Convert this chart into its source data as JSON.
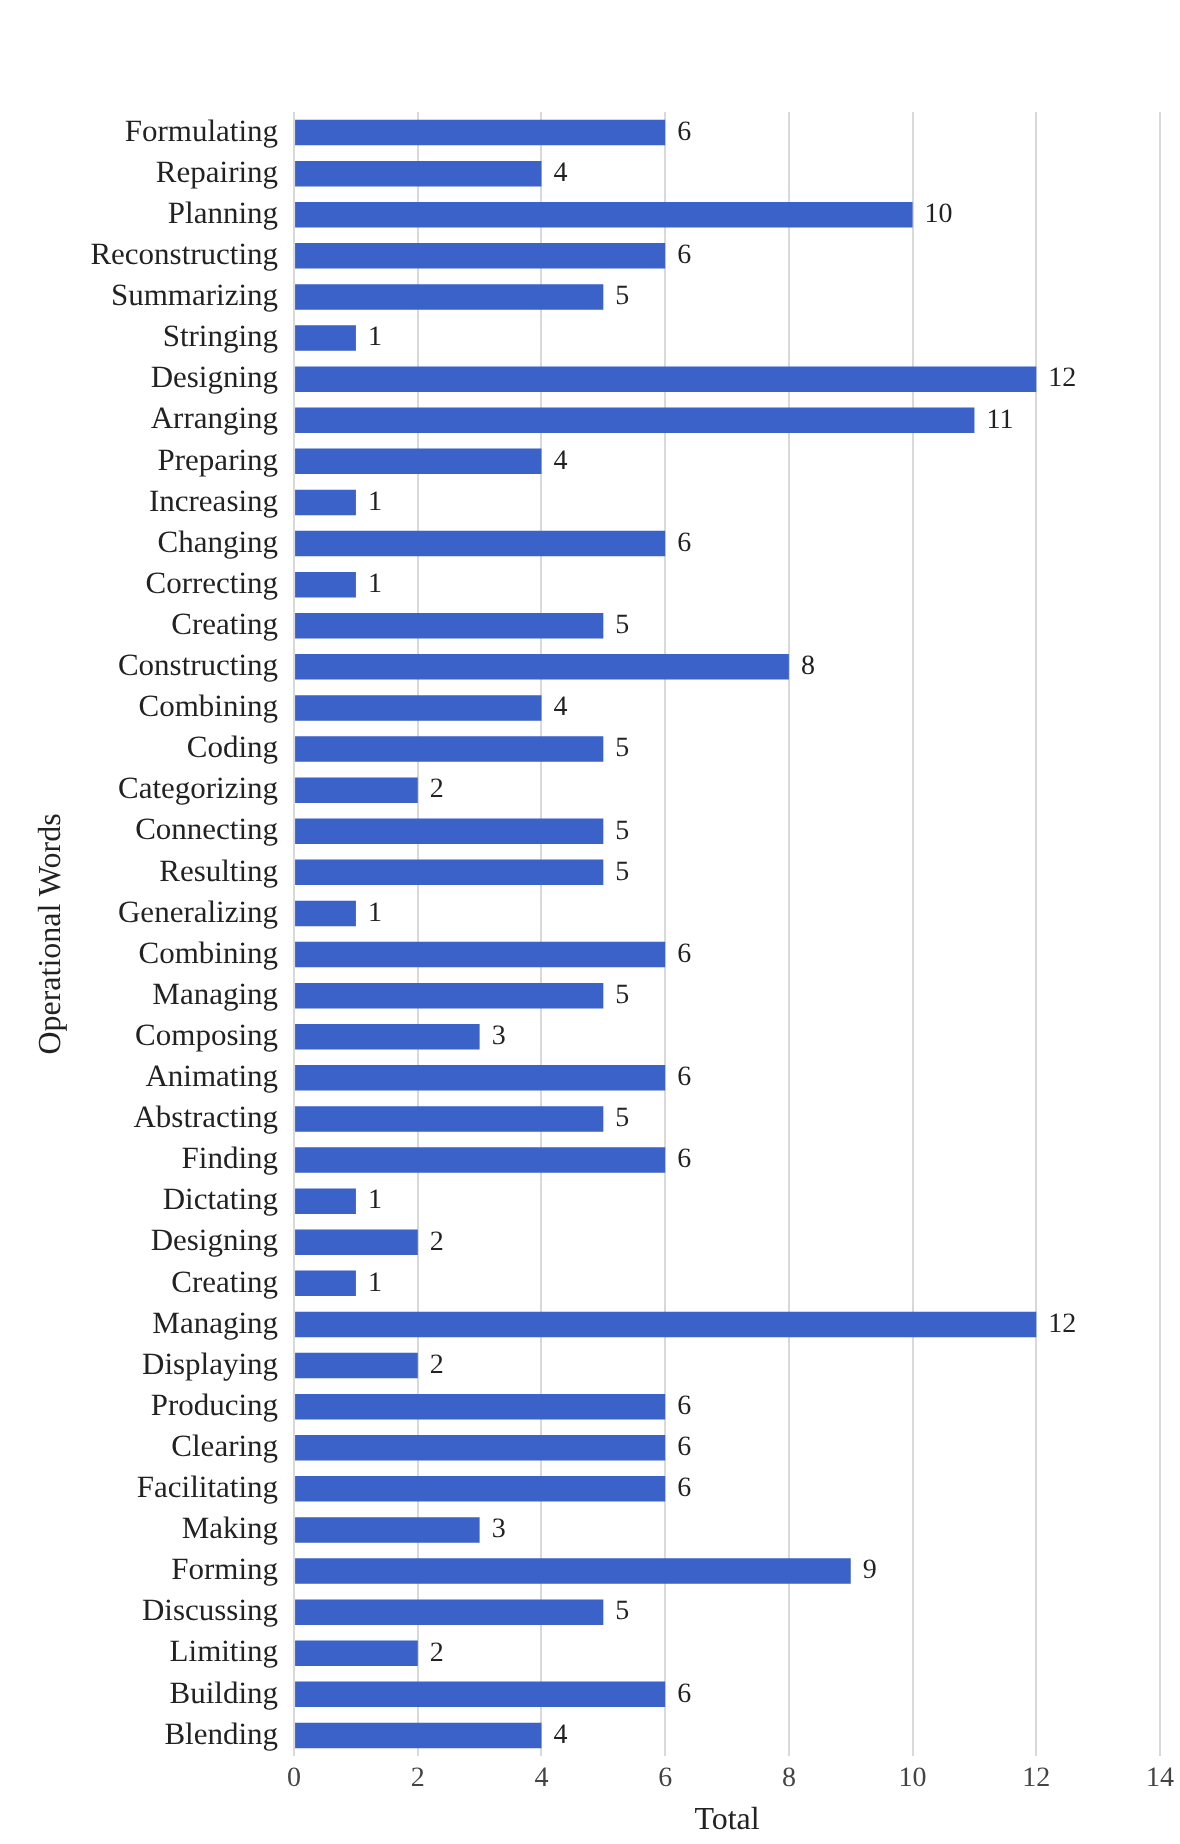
{
  "chart_data": {
    "type": "bar",
    "orientation": "horizontal",
    "xlabel": "Total",
    "ylabel": "Operational Words",
    "categories": [
      "Formulating",
      "Repairing",
      "Planning",
      "Reconstructing",
      "Summarizing",
      "Stringing",
      "Designing",
      "Arranging",
      "Preparing",
      "Increasing",
      "Changing",
      "Correcting",
      "Creating",
      "Constructing",
      "Combining",
      "Coding",
      "Categorizing",
      "Connecting",
      "Resulting",
      "Generalizing",
      "Combining",
      "Managing",
      "Composing",
      "Animating",
      "Abstracting",
      "Finding",
      "Dictating",
      "Designing",
      "Creating",
      "Managing",
      "Displaying",
      "Producing",
      "Clearing",
      "Facilitating",
      "Making",
      "Forming",
      "Discussing",
      "Limiting",
      "Building",
      "Blending"
    ],
    "values": [
      6,
      4,
      10,
      6,
      5,
      1,
      12,
      11,
      4,
      1,
      6,
      1,
      5,
      8,
      4,
      5,
      2,
      5,
      5,
      1,
      6,
      5,
      3,
      6,
      5,
      6,
      1,
      2,
      1,
      12,
      2,
      6,
      6,
      6,
      3,
      9,
      5,
      2,
      6,
      4
    ],
    "color": "#3a62c9",
    "xlim": [
      0,
      14
    ],
    "xticks": [
      0,
      2,
      4,
      6,
      8,
      10,
      12,
      14
    ],
    "grid": "x",
    "data_labels": true,
    "legend": false
  }
}
